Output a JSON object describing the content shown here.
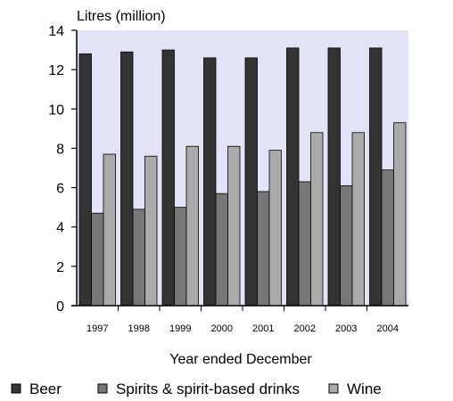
{
  "chart_data": {
    "type": "bar",
    "ylabel": "Litres (million)",
    "xlabel": "Year ended December",
    "categories": [
      "1997",
      "1998",
      "1999",
      "2000",
      "2001",
      "2002",
      "2003",
      "2004"
    ],
    "series": [
      {
        "name": "Beer",
        "values": [
          12.8,
          12.9,
          13.0,
          12.6,
          12.6,
          13.1,
          13.1,
          13.1
        ],
        "color": "#333333"
      },
      {
        "name": "Spirits & spirit-based drinks",
        "values": [
          4.7,
          4.9,
          5.0,
          5.7,
          5.8,
          6.3,
          6.1,
          6.9
        ],
        "color": "#777777"
      },
      {
        "name": "Wine",
        "values": [
          7.7,
          7.6,
          8.1,
          8.1,
          7.9,
          8.8,
          8.8,
          9.3
        ],
        "color": "#aaaaaa"
      }
    ],
    "ylim": [
      0,
      14
    ],
    "yticks": [
      "0",
      "2",
      "4",
      "6",
      "8",
      "10",
      "12",
      "14"
    ],
    "plot_background": "#e3e3f7",
    "grid": false,
    "legend_position": "bottom"
  }
}
